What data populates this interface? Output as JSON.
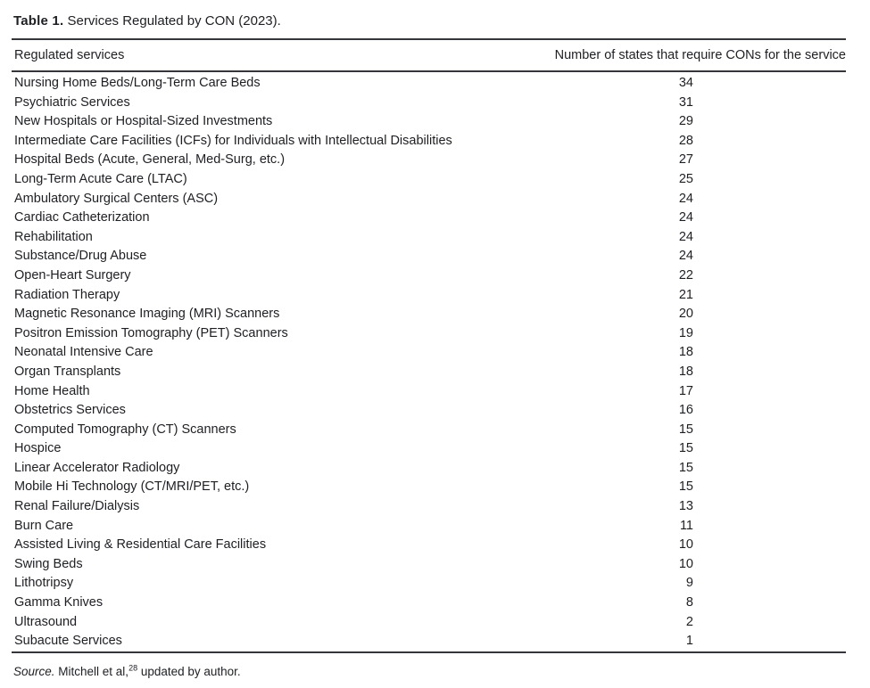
{
  "title": {
    "label": "Table 1.",
    "text": "Services Regulated by CON (2023)."
  },
  "table": {
    "header": {
      "service": "Regulated services",
      "count": "Number of states that require CONs for the service"
    },
    "rows": [
      {
        "service": "Nursing Home Beds/Long-Term Care Beds",
        "count": 34
      },
      {
        "service": "Psychiatric Services",
        "count": 31
      },
      {
        "service": "New Hospitals or Hospital-Sized Investments",
        "count": 29
      },
      {
        "service": "Intermediate Care Facilities (ICFs) for Individuals with Intellectual Disabilities",
        "count": 28
      },
      {
        "service": "Hospital Beds (Acute, General, Med-Surg, etc.)",
        "count": 27
      },
      {
        "service": "Long-Term Acute Care (LTAC)",
        "count": 25
      },
      {
        "service": "Ambulatory Surgical Centers (ASC)",
        "count": 24
      },
      {
        "service": "Cardiac Catheterization",
        "count": 24
      },
      {
        "service": "Rehabilitation",
        "count": 24
      },
      {
        "service": "Substance/Drug Abuse",
        "count": 24
      },
      {
        "service": "Open-Heart Surgery",
        "count": 22
      },
      {
        "service": "Radiation Therapy",
        "count": 21
      },
      {
        "service": "Magnetic Resonance Imaging (MRI) Scanners",
        "count": 20
      },
      {
        "service": "Positron Emission Tomography (PET) Scanners",
        "count": 19
      },
      {
        "service": "Neonatal Intensive Care",
        "count": 18
      },
      {
        "service": "Organ Transplants",
        "count": 18
      },
      {
        "service": "Home Health",
        "count": 17
      },
      {
        "service": "Obstetrics Services",
        "count": 16
      },
      {
        "service": "Computed Tomography (CT) Scanners",
        "count": 15
      },
      {
        "service": "Hospice",
        "count": 15
      },
      {
        "service": "Linear Accelerator Radiology",
        "count": 15
      },
      {
        "service": "Mobile Hi Technology (CT/MRI/PET, etc.)",
        "count": 15
      },
      {
        "service": "Renal Failure/Dialysis",
        "count": 13
      },
      {
        "service": "Burn Care",
        "count": 11
      },
      {
        "service": "Assisted Living & Residential Care Facilities",
        "count": 10
      },
      {
        "service": "Swing Beds",
        "count": 10
      },
      {
        "service": "Lithotripsy",
        "count": 9
      },
      {
        "service": "Gamma Knives",
        "count": 8
      },
      {
        "service": "Ultrasound",
        "count": 2
      },
      {
        "service": "Subacute Services",
        "count": 1
      }
    ]
  },
  "footer": {
    "source_label": "Source.",
    "citation": " Mitchell et al,",
    "ref_superscript": "28",
    "suffix": " updated by author."
  },
  "chart_data": {
    "type": "table",
    "title": "Table 1. Services Regulated by CON (2023).",
    "columns": [
      "Regulated services",
      "Number of states that require CONs for the service"
    ],
    "categories": [
      "Nursing Home Beds/Long-Term Care Beds",
      "Psychiatric Services",
      "New Hospitals or Hospital-Sized Investments",
      "Intermediate Care Facilities (ICFs) for Individuals with Intellectual Disabilities",
      "Hospital Beds (Acute, General, Med-Surg, etc.)",
      "Long-Term Acute Care (LTAC)",
      "Ambulatory Surgical Centers (ASC)",
      "Cardiac Catheterization",
      "Rehabilitation",
      "Substance/Drug Abuse",
      "Open-Heart Surgery",
      "Radiation Therapy",
      "Magnetic Resonance Imaging (MRI) Scanners",
      "Positron Emission Tomography (PET) Scanners",
      "Neonatal Intensive Care",
      "Organ Transplants",
      "Home Health",
      "Obstetrics Services",
      "Computed Tomography (CT) Scanners",
      "Hospice",
      "Linear Accelerator Radiology",
      "Mobile Hi Technology (CT/MRI/PET, etc.)",
      "Renal Failure/Dialysis",
      "Burn Care",
      "Assisted Living & Residential Care Facilities",
      "Swing Beds",
      "Lithotripsy",
      "Gamma Knives",
      "Ultrasound",
      "Subacute Services"
    ],
    "values": [
      34,
      31,
      29,
      28,
      27,
      25,
      24,
      24,
      24,
      24,
      22,
      21,
      20,
      19,
      18,
      18,
      17,
      16,
      15,
      15,
      15,
      15,
      13,
      11,
      10,
      10,
      9,
      8,
      2,
      1
    ],
    "source_note": "Source. Mitchell et al,28 updated by author."
  }
}
